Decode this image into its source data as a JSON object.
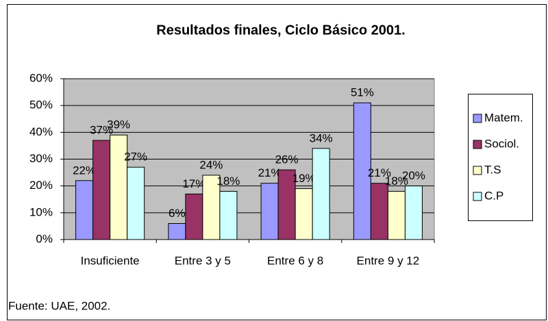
{
  "chart_data": {
    "type": "bar",
    "title": "Resultados finales, Ciclo Básico 2001.",
    "source": "Fuente: UAE, 2002.",
    "categories": [
      "Insuficiente",
      "Entre 3 y 5",
      "Entre 6 y 8",
      "Entre 9 y 12"
    ],
    "series": [
      {
        "name": "Matem.",
        "color": "#9999ff",
        "values": [
          22,
          6,
          21,
          51
        ],
        "value_labels": [
          "22%",
          "6%",
          "21%",
          "51%"
        ]
      },
      {
        "name": "Sociol.",
        "color": "#993366",
        "values": [
          37,
          17,
          26,
          21
        ],
        "value_labels": [
          "37%",
          "17%",
          "26%",
          "21%"
        ]
      },
      {
        "name": "T.S",
        "color": "#ffffcc",
        "values": [
          39,
          24,
          19,
          18
        ],
        "value_labels": [
          "39%",
          "24%",
          "19%",
          "18%"
        ]
      },
      {
        "name": "C.P",
        "color": "#ccffff",
        "values": [
          27,
          18,
          34,
          20
        ],
        "value_labels": [
          "27%",
          "18%",
          "34%",
          "20%"
        ]
      }
    ],
    "ylim": [
      0,
      60
    ],
    "yticks": [
      {
        "value": 0,
        "label": "0%"
      },
      {
        "value": 10,
        "label": "10%"
      },
      {
        "value": 20,
        "label": "20%"
      },
      {
        "value": 30,
        "label": "30%"
      },
      {
        "value": 40,
        "label": "40%"
      },
      {
        "value": 50,
        "label": "50%"
      },
      {
        "value": 60,
        "label": "60%"
      }
    ],
    "grid": true,
    "legend": "right",
    "plot_background": "#c0c0c0"
  }
}
